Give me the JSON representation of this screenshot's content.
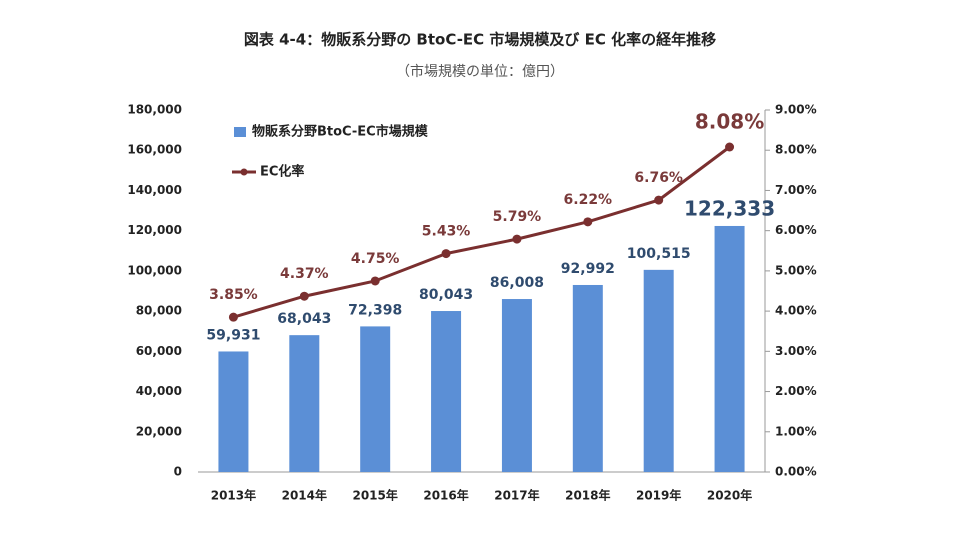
{
  "chart_data": {
    "type": "bar",
    "title": "図表 4-4：物販系分野の BtoC-EC 市場規模及び EC 化率の経年推移",
    "subtitle": "（市場規模の単位：億円）",
    "categories": [
      "2013年",
      "2014年",
      "2015年",
      "2016年",
      "2017年",
      "2018年",
      "2019年",
      "2020年"
    ],
    "series": [
      {
        "name": "物販系分野BtoC-EC市場規模",
        "type": "bar",
        "color": "#5b8fd6",
        "values": [
          59931,
          68043,
          72398,
          80043,
          86008,
          92992,
          100515,
          122333
        ],
        "value_labels": [
          "59,931",
          "68,043",
          "72,398",
          "80,043",
          "86,008",
          "92,992",
          "100,515",
          "122,333"
        ]
      },
      {
        "name": "EC化率",
        "type": "line",
        "axis": "y2",
        "color": "#7a2f2f",
        "values": [
          3.85,
          4.37,
          4.75,
          5.43,
          5.79,
          6.22,
          6.76,
          8.08
        ],
        "value_labels": [
          "3.85%",
          "4.37%",
          "4.75%",
          "5.43%",
          "5.79%",
          "6.22%",
          "6.76%",
          "8.08%"
        ]
      }
    ],
    "ylim": [
      0,
      180000
    ],
    "yticks": [
      0,
      {
        "value": 20000,
        "label": "20,000"
      },
      {
        "value": 40000,
        "label": "40,000"
      },
      {
        "value": 60000,
        "label": "60,000"
      },
      {
        "value": 80000,
        "label": "80,000"
      },
      {
        "value": 100000,
        "label": "100,000"
      },
      {
        "value": 120000,
        "label": "120,000"
      },
      {
        "value": 140000,
        "label": "140,000"
      },
      {
        "value": 160000,
        "label": "160,000"
      },
      {
        "value": 180000,
        "label": "180,000"
      }
    ],
    "y2lim": [
      0,
      9
    ],
    "y2ticks": [
      {
        "value": 0,
        "label": "0.00%"
      },
      {
        "value": 1,
        "label": "1.00%"
      },
      {
        "value": 2,
        "label": "2.00%"
      },
      {
        "value": 3,
        "label": "3.00%"
      },
      {
        "value": 4,
        "label": "4.00%"
      },
      {
        "value": 5,
        "label": "5.00%"
      },
      {
        "value": 6,
        "label": "6.00%"
      },
      {
        "value": 7,
        "label": "7.00%"
      },
      {
        "value": 8,
        "label": "8.00%"
      },
      {
        "value": 9,
        "label": "9.00%"
      }
    ]
  }
}
